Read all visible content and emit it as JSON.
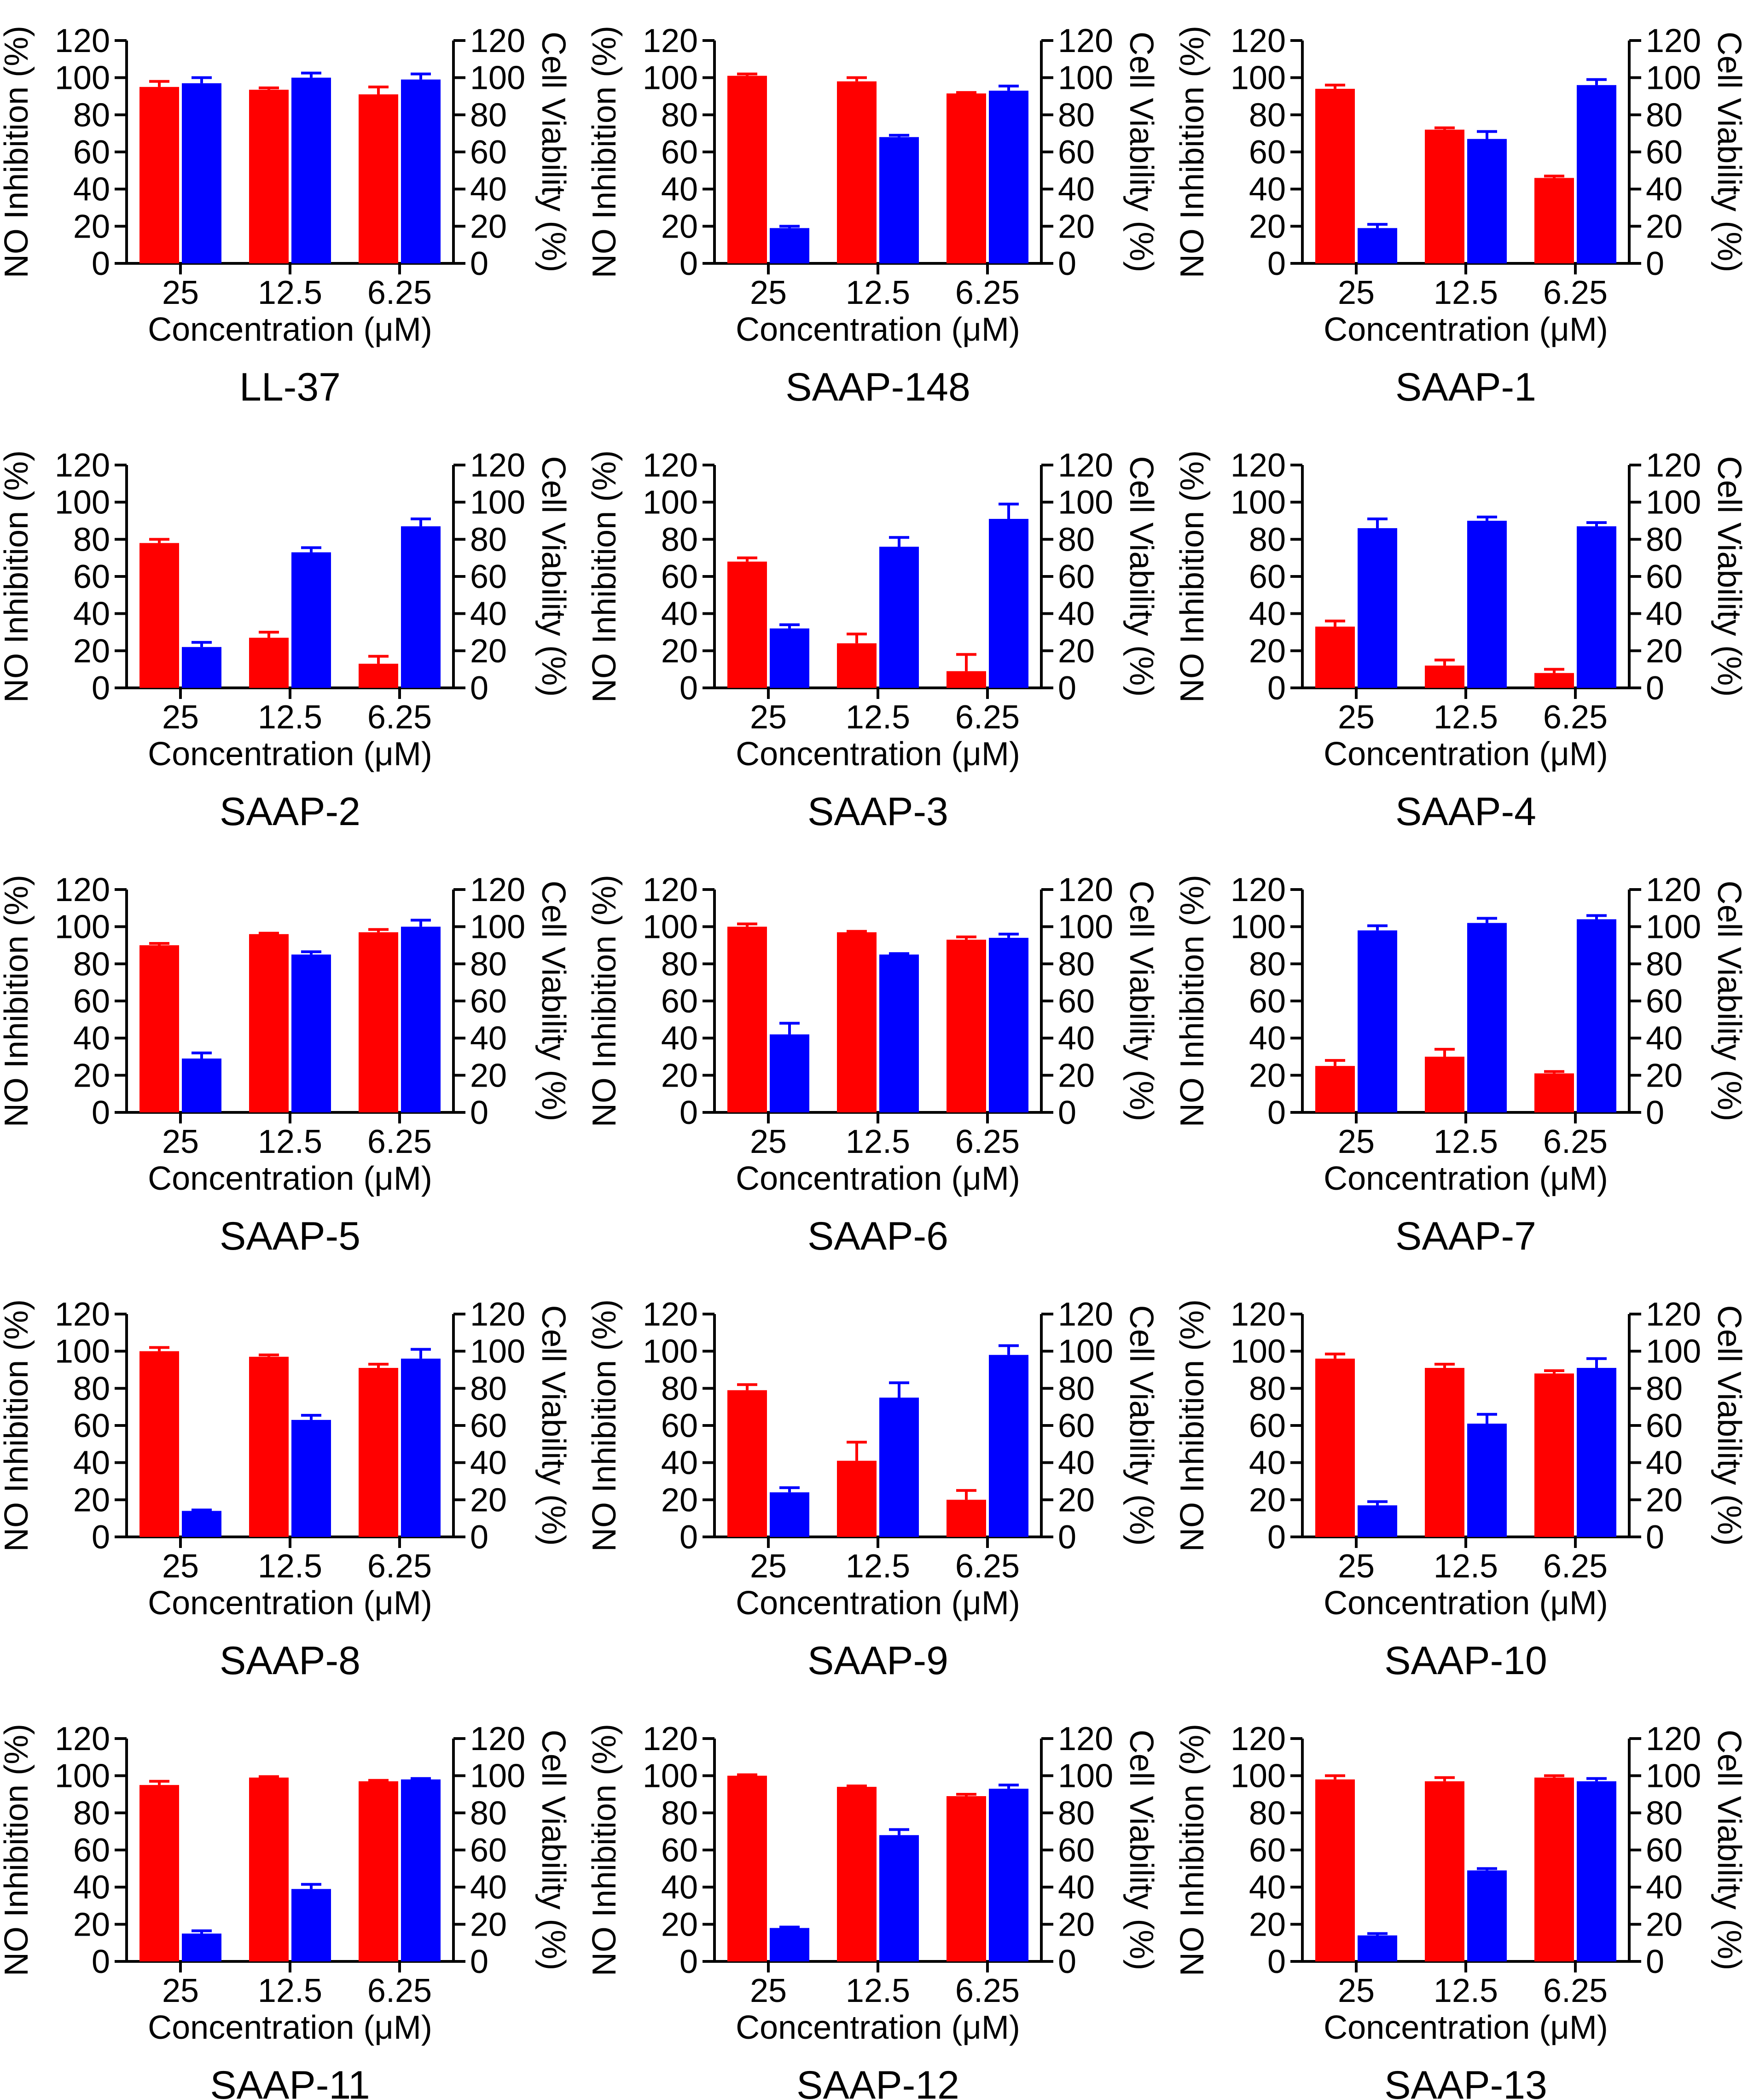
{
  "figure": {
    "colors": {
      "no_inhibition": "#ff0000",
      "cell_viability": "#0000ff",
      "axis": "#000000"
    }
  },
  "chart_data": [
    {
      "type": "bar",
      "title": "LL-37",
      "categories": [
        "25",
        "12.5",
        "6.25"
      ],
      "xlabel": "Concentration (μM)",
      "ylabel": "NO Inhibition (%)",
      "y2label": "Cell Viability (%)",
      "ylim": [
        0,
        120
      ],
      "y2lim": [
        0,
        120
      ],
      "yticks": [
        0,
        20,
        40,
        60,
        80,
        100,
        120
      ],
      "series": [
        {
          "name": "NO Inhibition",
          "axis": "left",
          "color": "#ff0000",
          "values": [
            95,
            93.5,
            91
          ],
          "errors": [
            3,
            1,
            4
          ]
        },
        {
          "name": "Cell Viability",
          "axis": "right",
          "color": "#0000ff",
          "values": [
            97,
            100,
            99
          ],
          "errors": [
            3,
            2.5,
            3
          ]
        }
      ]
    },
    {
      "type": "bar",
      "title": "SAAP-148",
      "categories": [
        "25",
        "12.5",
        "6.25"
      ],
      "xlabel": "Concentration (μM)",
      "ylabel": "NO Inhibition (%)",
      "y2label": "Cell Viability (%)",
      "ylim": [
        0,
        120
      ],
      "y2lim": [
        0,
        120
      ],
      "yticks": [
        0,
        20,
        40,
        60,
        80,
        100,
        120
      ],
      "series": [
        {
          "name": "NO Inhibition",
          "axis": "left",
          "color": "#ff0000",
          "values": [
            101,
            98,
            91.5
          ],
          "errors": [
            1,
            2,
            0.5
          ]
        },
        {
          "name": "Cell Viability",
          "axis": "right",
          "color": "#0000ff",
          "values": [
            19,
            68,
            93
          ],
          "errors": [
            1,
            1,
            2.5
          ]
        }
      ]
    },
    {
      "type": "bar",
      "title": "SAAP-1",
      "categories": [
        "25",
        "12.5",
        "6.25"
      ],
      "xlabel": "Concentration (μM)",
      "ylabel": "NO Inhibition (%)",
      "y2label": "Cell Viability (%)",
      "ylim": [
        0,
        120
      ],
      "y2lim": [
        0,
        120
      ],
      "yticks": [
        0,
        20,
        40,
        60,
        80,
        100,
        120
      ],
      "series": [
        {
          "name": "NO Inhibition",
          "axis": "left",
          "color": "#ff0000",
          "values": [
            94,
            72,
            46
          ],
          "errors": [
            2,
            1,
            1
          ]
        },
        {
          "name": "Cell Viability",
          "axis": "right",
          "color": "#0000ff",
          "values": [
            19,
            67,
            96
          ],
          "errors": [
            2,
            4,
            3
          ]
        }
      ]
    },
    {
      "type": "bar",
      "title": "SAAP-2",
      "categories": [
        "25",
        "12.5",
        "6.25"
      ],
      "xlabel": "Concentration (μM)",
      "ylabel": "NO Inhibition (%)",
      "y2label": "Cell Viability (%)",
      "ylim": [
        0,
        120
      ],
      "y2lim": [
        0,
        120
      ],
      "yticks": [
        0,
        20,
        40,
        60,
        80,
        100,
        120
      ],
      "series": [
        {
          "name": "NO Inhibition",
          "axis": "left",
          "color": "#ff0000",
          "values": [
            78,
            27,
            13
          ],
          "errors": [
            2,
            3,
            4
          ]
        },
        {
          "name": "Cell Viability",
          "axis": "right",
          "color": "#0000ff",
          "values": [
            22,
            73,
            87
          ],
          "errors": [
            2.5,
            2.5,
            4
          ]
        }
      ]
    },
    {
      "type": "bar",
      "title": "SAAP-3",
      "categories": [
        "25",
        "12.5",
        "6.25"
      ],
      "xlabel": "Concentration (μM)",
      "ylabel": "NO Inhibition (%)",
      "y2label": "Cell Viability (%)",
      "ylim": [
        0,
        120
      ],
      "y2lim": [
        0,
        120
      ],
      "yticks": [
        0,
        20,
        40,
        60,
        80,
        100,
        120
      ],
      "series": [
        {
          "name": "NO Inhibition",
          "axis": "left",
          "color": "#ff0000",
          "values": [
            68,
            24,
            9
          ],
          "errors": [
            2,
            5,
            9
          ]
        },
        {
          "name": "Cell Viability",
          "axis": "right",
          "color": "#0000ff",
          "values": [
            32,
            76,
            91
          ],
          "errors": [
            2,
            5,
            8
          ]
        }
      ]
    },
    {
      "type": "bar",
      "title": "SAAP-4",
      "categories": [
        "25",
        "12.5",
        "6.25"
      ],
      "xlabel": "Concentration (μM)",
      "ylabel": "NO Inhibition (%)",
      "y2label": "Cell Viability (%)",
      "ylim": [
        0,
        120
      ],
      "y2lim": [
        0,
        120
      ],
      "yticks": [
        0,
        20,
        40,
        60,
        80,
        100,
        120
      ],
      "series": [
        {
          "name": "NO Inhibition",
          "axis": "left",
          "color": "#ff0000",
          "values": [
            33,
            12,
            8
          ],
          "errors": [
            3,
            3,
            2
          ]
        },
        {
          "name": "Cell Viability",
          "axis": "right",
          "color": "#0000ff",
          "values": [
            86,
            90,
            87
          ],
          "errors": [
            5,
            2,
            2
          ]
        }
      ]
    },
    {
      "type": "bar",
      "title": "SAAP-5",
      "categories": [
        "25",
        "12.5",
        "6.25"
      ],
      "xlabel": "Concentration (μM)",
      "ylabel": "NO Inhibition (%)",
      "y2label": "Cell Viability (%)",
      "ylim": [
        0,
        120
      ],
      "y2lim": [
        0,
        120
      ],
      "yticks": [
        0,
        20,
        40,
        60,
        80,
        100,
        120
      ],
      "series": [
        {
          "name": "NO Inhibition",
          "axis": "left",
          "color": "#ff0000",
          "values": [
            90,
            96,
            97
          ],
          "errors": [
            1,
            0.5,
            1.5
          ]
        },
        {
          "name": "Cell Viability",
          "axis": "right",
          "color": "#0000ff",
          "values": [
            29,
            85,
            100
          ],
          "errors": [
            3,
            1.5,
            3.5
          ]
        }
      ]
    },
    {
      "type": "bar",
      "title": "SAAP-6",
      "categories": [
        "25",
        "12.5",
        "6.25"
      ],
      "xlabel": "Concentration (μM)",
      "ylabel": "NO Inhibition (%)",
      "y2label": "Cell Viability (%)",
      "ylim": [
        0,
        120
      ],
      "y2lim": [
        0,
        120
      ],
      "yticks": [
        0,
        20,
        40,
        60,
        80,
        100,
        120
      ],
      "series": [
        {
          "name": "NO Inhibition",
          "axis": "left",
          "color": "#ff0000",
          "values": [
            100,
            97,
            93
          ],
          "errors": [
            1.5,
            0.5,
            1.5
          ]
        },
        {
          "name": "Cell Viability",
          "axis": "right",
          "color": "#0000ff",
          "values": [
            42,
            85,
            94
          ],
          "errors": [
            6,
            0.5,
            2
          ]
        }
      ]
    },
    {
      "type": "bar",
      "title": "SAAP-7",
      "categories": [
        "25",
        "12.5",
        "6.25"
      ],
      "xlabel": "Concentration (μM)",
      "ylabel": "NO Inhibition (%)",
      "y2label": "Cell Viability (%)",
      "ylim": [
        0,
        120
      ],
      "y2lim": [
        0,
        120
      ],
      "yticks": [
        0,
        20,
        40,
        60,
        80,
        100,
        120
      ],
      "series": [
        {
          "name": "NO Inhibition",
          "axis": "left",
          "color": "#ff0000",
          "values": [
            25,
            30,
            21
          ],
          "errors": [
            3,
            4,
            1
          ]
        },
        {
          "name": "Cell Viability",
          "axis": "right",
          "color": "#0000ff",
          "values": [
            98,
            102,
            104
          ],
          "errors": [
            2.5,
            2.5,
            2
          ]
        }
      ]
    },
    {
      "type": "bar",
      "title": "SAAP-8",
      "categories": [
        "25",
        "12.5",
        "6.25"
      ],
      "xlabel": "Concentration (μM)",
      "ylabel": "NO Inhibition (%)",
      "y2label": "Cell Viability (%)",
      "ylim": [
        0,
        120
      ],
      "y2lim": [
        0,
        120
      ],
      "yticks": [
        0,
        20,
        40,
        60,
        80,
        100,
        120
      ],
      "series": [
        {
          "name": "NO Inhibition",
          "axis": "left",
          "color": "#ff0000",
          "values": [
            100,
            97,
            91
          ],
          "errors": [
            2,
            1,
            2
          ]
        },
        {
          "name": "Cell Viability",
          "axis": "right",
          "color": "#0000ff",
          "values": [
            14,
            63,
            96
          ],
          "errors": [
            0.5,
            2.5,
            5
          ]
        }
      ]
    },
    {
      "type": "bar",
      "title": "SAAP-9",
      "categories": [
        "25",
        "12.5",
        "6.25"
      ],
      "xlabel": "Concentration (μM)",
      "ylabel": "NO Inhibition (%)",
      "y2label": "Cell Viability (%)",
      "ylim": [
        0,
        120
      ],
      "y2lim": [
        0,
        120
      ],
      "yticks": [
        0,
        20,
        40,
        60,
        80,
        100,
        120
      ],
      "series": [
        {
          "name": "NO Inhibition",
          "axis": "left",
          "color": "#ff0000",
          "values": [
            79,
            41,
            20
          ],
          "errors": [
            3,
            10,
            5
          ]
        },
        {
          "name": "Cell Viability",
          "axis": "right",
          "color": "#0000ff",
          "values": [
            24,
            75,
            98
          ],
          "errors": [
            2.5,
            8,
            5
          ]
        }
      ]
    },
    {
      "type": "bar",
      "title": "SAAP-10",
      "categories": [
        "25",
        "12.5",
        "6.25"
      ],
      "xlabel": "Concentration (μM)",
      "ylabel": "NO Inhibition (%)",
      "y2label": "Cell Viability (%)",
      "ylim": [
        0,
        120
      ],
      "y2lim": [
        0,
        120
      ],
      "yticks": [
        0,
        20,
        40,
        60,
        80,
        100,
        120
      ],
      "series": [
        {
          "name": "NO Inhibition",
          "axis": "left",
          "color": "#ff0000",
          "values": [
            96,
            91,
            88
          ],
          "errors": [
            2.5,
            2,
            1.5
          ]
        },
        {
          "name": "Cell Viability",
          "axis": "right",
          "color": "#0000ff",
          "values": [
            17,
            61,
            91
          ],
          "errors": [
            2,
            5,
            5
          ]
        }
      ]
    },
    {
      "type": "bar",
      "title": "SAAP-11",
      "categories": [
        "25",
        "12.5",
        "6.25"
      ],
      "xlabel": "Concentration (μM)",
      "ylabel": "NO Inhibition (%)",
      "y2label": "Cell Viability (%)",
      "ylim": [
        0,
        120
      ],
      "y2lim": [
        0,
        120
      ],
      "yticks": [
        0,
        20,
        40,
        60,
        80,
        100,
        120
      ],
      "series": [
        {
          "name": "NO Inhibition",
          "axis": "left",
          "color": "#ff0000",
          "values": [
            95,
            99,
            97
          ],
          "errors": [
            2,
            0.5,
            0.5
          ]
        },
        {
          "name": "Cell Viability",
          "axis": "right",
          "color": "#0000ff",
          "values": [
            15,
            39,
            98
          ],
          "errors": [
            1.5,
            2.5,
            0.5
          ]
        }
      ]
    },
    {
      "type": "bar",
      "title": "SAAP-12",
      "categories": [
        "25",
        "12.5",
        "6.25"
      ],
      "xlabel": "Concentration (μM)",
      "ylabel": "NO Inhibition (%)",
      "y2label": "Cell Viability (%)",
      "ylim": [
        0,
        120
      ],
      "y2lim": [
        0,
        120
      ],
      "yticks": [
        0,
        20,
        40,
        60,
        80,
        100,
        120
      ],
      "series": [
        {
          "name": "NO Inhibition",
          "axis": "left",
          "color": "#ff0000",
          "values": [
            100,
            94,
            89
          ],
          "errors": [
            0.5,
            0.5,
            1
          ]
        },
        {
          "name": "Cell Viability",
          "axis": "right",
          "color": "#0000ff",
          "values": [
            18,
            68,
            93
          ],
          "errors": [
            0.5,
            3,
            2
          ]
        }
      ]
    },
    {
      "type": "bar",
      "title": "SAAP-13",
      "categories": [
        "25",
        "12.5",
        "6.25"
      ],
      "xlabel": "Concentration (μM)",
      "ylabel": "NO Inhibition (%)",
      "y2label": "Cell Viability (%)",
      "ylim": [
        0,
        120
      ],
      "y2lim": [
        0,
        120
      ],
      "yticks": [
        0,
        20,
        40,
        60,
        80,
        100,
        120
      ],
      "series": [
        {
          "name": "NO Inhibition",
          "axis": "left",
          "color": "#ff0000",
          "values": [
            98,
            97,
            99
          ],
          "errors": [
            2,
            2,
            1
          ]
        },
        {
          "name": "Cell Viability",
          "axis": "right",
          "color": "#0000ff",
          "values": [
            14,
            49,
            97
          ],
          "errors": [
            1,
            1,
            1.5
          ]
        }
      ]
    }
  ]
}
